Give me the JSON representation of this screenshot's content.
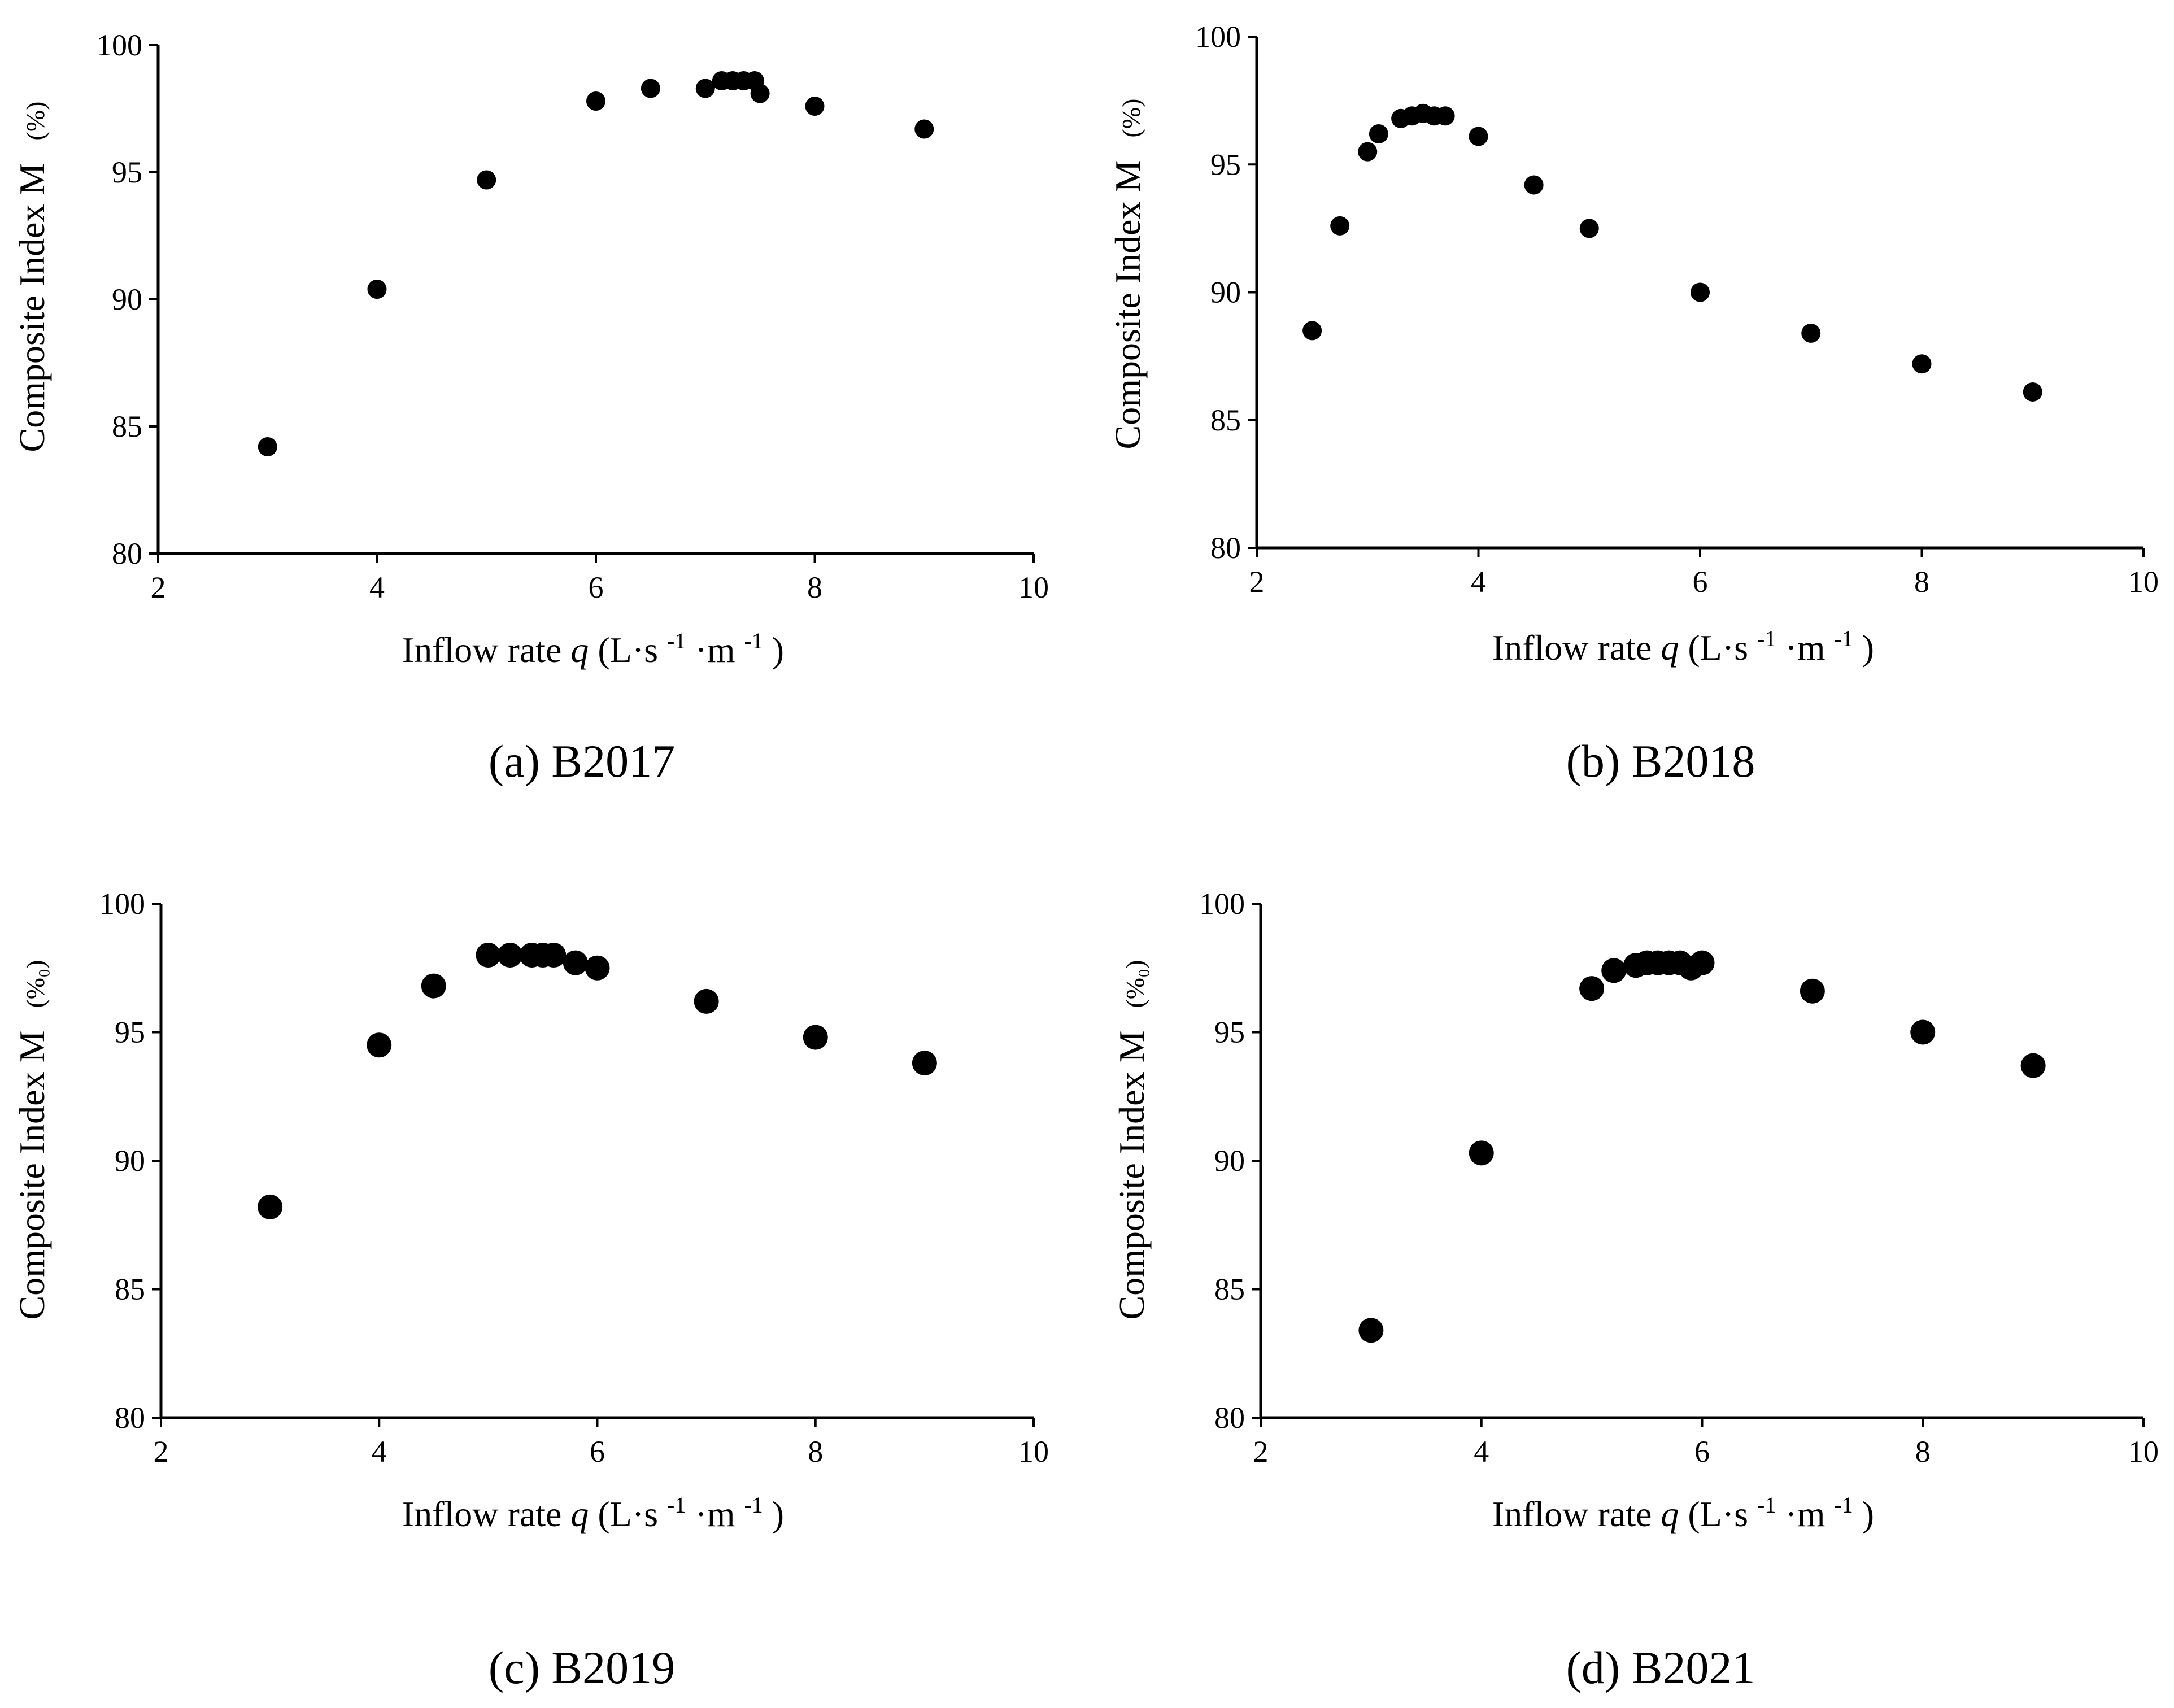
{
  "figure": {
    "panels": [
      {
        "caption": "(a) B2017",
        "xlabel_main": "Inflow rate ",
        "xlabel_var": "q",
        "xlabel_unit_1": " (L·s",
        "xlabel_exp_1": "-1",
        "xlabel_unit_2": "·m",
        "xlabel_exp_2": "-1",
        "xlabel_unit_3": ")",
        "ylabel_main": "Composite Index M",
        "ylabel_unit": "(%)"
      },
      {
        "caption": "(b) B2018",
        "xlabel_main": "Inflow rate ",
        "xlabel_var": "q",
        "xlabel_unit_1": " (L·s",
        "xlabel_exp_1": "-1",
        "xlabel_unit_2": "·m",
        "xlabel_exp_2": "-1",
        "xlabel_unit_3": ")",
        "ylabel_main": "Composite Index M",
        "ylabel_unit": "(%)"
      },
      {
        "caption": "(c) B2019",
        "xlabel_main": "Inflow rate ",
        "xlabel_var": "q",
        "xlabel_unit_1": " (L·s",
        "xlabel_exp_1": "-1",
        "xlabel_unit_2": "·m",
        "xlabel_exp_2": "-1",
        "xlabel_unit_3": ")",
        "ylabel_main": "Composite Index M",
        "ylabel_unit": "(%₀)"
      },
      {
        "caption": "(d) B2021",
        "xlabel_main": "Inflow rate ",
        "xlabel_var": "q",
        "xlabel_unit_1": " (L·s",
        "xlabel_exp_1": "-1",
        "xlabel_unit_2": "·m",
        "xlabel_exp_2": "-1",
        "xlabel_unit_3": ")",
        "ylabel_main": "Composite Index M",
        "ylabel_unit": "(%₀)"
      }
    ]
  },
  "chart_data": [
    {
      "type": "scatter",
      "title": "(a) B2017",
      "xlabel": "Inflow rate q (L·s-1·m-1)",
      "ylabel": "Composite Index M (%)",
      "xlim": [
        2,
        10
      ],
      "ylim": [
        80,
        100
      ],
      "xticks": [
        2,
        4,
        6,
        8,
        10
      ],
      "yticks": [
        80,
        85,
        90,
        95,
        100
      ],
      "grid": false,
      "marker_color": "#000000",
      "series": [
        {
          "name": "B2017",
          "x": [
            3,
            4,
            5,
            6,
            6.5,
            7,
            7.15,
            7.25,
            7.35,
            7.45,
            7.5,
            8,
            9
          ],
          "y": [
            84.2,
            90.4,
            94.7,
            97.8,
            98.3,
            98.3,
            98.6,
            98.6,
            98.6,
            98.6,
            98.1,
            97.6,
            96.7
          ]
        }
      ]
    },
    {
      "type": "scatter",
      "title": "(b) B2018",
      "xlabel": "Inflow rate q (L·s-1·m-1)",
      "ylabel": "Composite Index M (%)",
      "xlim": [
        2,
        10
      ],
      "ylim": [
        80,
        100
      ],
      "xticks": [
        2,
        4,
        6,
        8,
        10
      ],
      "yticks": [
        80,
        85,
        90,
        95,
        100
      ],
      "grid": false,
      "marker_color": "#000000",
      "series": [
        {
          "name": "B2018",
          "x": [
            2.5,
            2.75,
            3,
            3.1,
            3.3,
            3.4,
            3.5,
            3.6,
            3.7,
            4,
            4.5,
            5,
            6,
            7,
            8,
            9
          ],
          "y": [
            88.5,
            92.6,
            95.5,
            96.2,
            96.8,
            96.9,
            97.0,
            96.9,
            96.9,
            96.1,
            94.2,
            92.5,
            90.0,
            88.4,
            87.2,
            86.1
          ]
        }
      ]
    },
    {
      "type": "scatter",
      "title": "(c) B2019",
      "xlabel": "Inflow rate q (L·s-1·m-1)",
      "ylabel": "Composite Index M (%₀)",
      "xlim": [
        2,
        10
      ],
      "ylim": [
        80,
        100
      ],
      "xticks": [
        2,
        4,
        6,
        8,
        10
      ],
      "yticks": [
        80,
        85,
        90,
        95,
        100
      ],
      "grid": false,
      "marker_color": "#000000",
      "series": [
        {
          "name": "B2019",
          "x": [
            3,
            4,
            4.5,
            5,
            5.2,
            5.4,
            5.5,
            5.6,
            5.8,
            6,
            7,
            8,
            9
          ],
          "y": [
            88.2,
            94.5,
            96.8,
            98.0,
            98.0,
            98.0,
            98.0,
            98.0,
            97.7,
            97.5,
            96.2,
            94.8,
            93.8
          ]
        }
      ]
    },
    {
      "type": "scatter",
      "title": "(d) B2021",
      "xlabel": "Inflow rate q (L·s-1·m-1)",
      "ylabel": "Composite Index M (%₀)",
      "xlim": [
        2,
        10
      ],
      "ylim": [
        80,
        100
      ],
      "xticks": [
        2,
        4,
        6,
        8,
        10
      ],
      "yticks": [
        80,
        85,
        90,
        95,
        100
      ],
      "grid": false,
      "marker_color": "#000000",
      "series": [
        {
          "name": "B2021",
          "x": [
            3,
            4,
            5,
            5.2,
            5.4,
            5.5,
            5.6,
            5.7,
            5.8,
            5.9,
            6,
            7,
            8,
            9
          ],
          "y": [
            83.4,
            90.3,
            96.7,
            97.4,
            97.6,
            97.7,
            97.7,
            97.7,
            97.7,
            97.5,
            97.7,
            96.6,
            95.0,
            93.7
          ]
        }
      ]
    }
  ]
}
